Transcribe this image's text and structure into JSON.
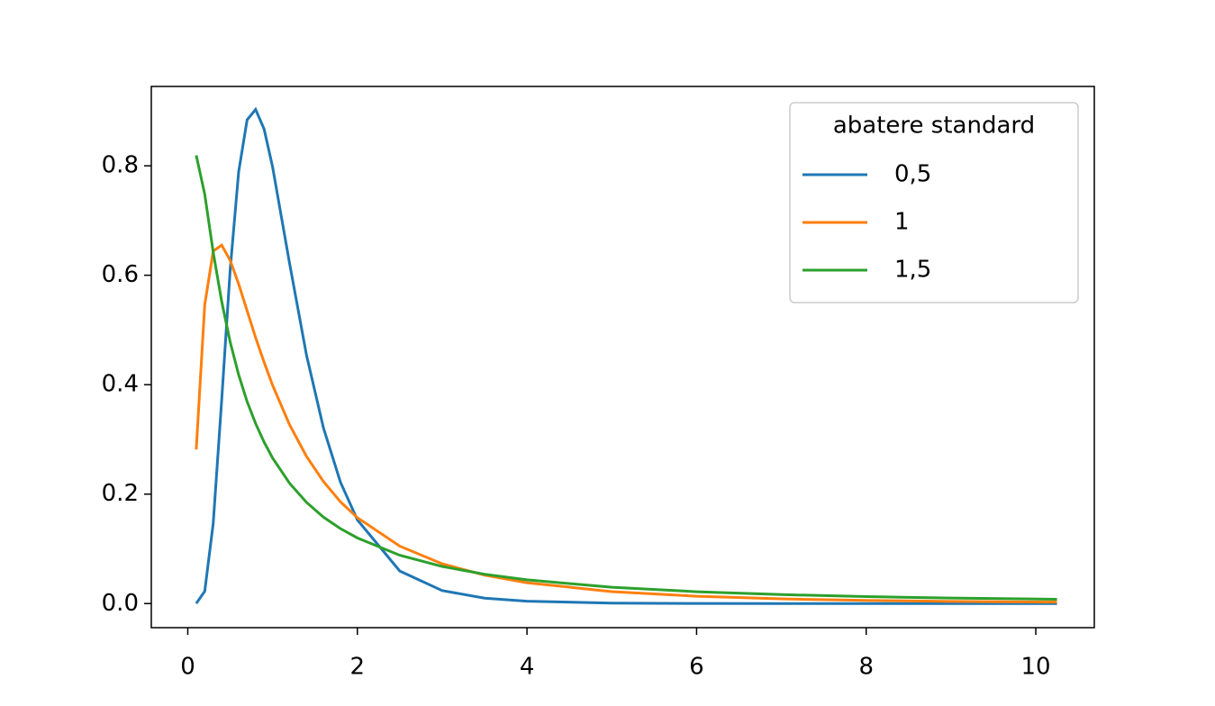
{
  "chart_data": {
    "type": "line",
    "legend_title": "abatere standard",
    "legend_position": "upper right",
    "x": [
      0.1,
      0.2,
      0.3,
      0.4,
      0.5,
      0.6,
      0.7,
      0.8,
      0.9,
      1.0,
      1.2,
      1.4,
      1.6,
      1.8,
      2.0,
      2.5,
      3,
      3.5,
      4,
      5,
      6,
      7,
      8,
      9,
      10.25
    ],
    "series": [
      {
        "name": "0,5",
        "color": "#1f77b4",
        "values": [
          0.0002,
          0.0225,
          0.1465,
          0.372,
          0.61,
          0.789,
          0.884,
          0.903,
          0.867,
          0.798,
          0.622,
          0.454,
          0.321,
          0.222,
          0.153,
          0.0595,
          0.0238,
          0.0099,
          0.0043,
          0.0009,
          0.0002,
          0.0001,
          0.0,
          0.0,
          0.0
        ]
      },
      {
        "name": "1",
        "color": "#ff7f0e",
        "values": [
          0.2816,
          0.546,
          0.644,
          0.655,
          0.627,
          0.584,
          0.535,
          0.486,
          0.441,
          0.399,
          0.327,
          0.269,
          0.223,
          0.186,
          0.157,
          0.105,
          0.0727,
          0.052,
          0.0381,
          0.0219,
          0.0134,
          0.0086,
          0.0057,
          0.004,
          0.0026
        ]
      },
      {
        "name": "1,5",
        "color": "#2ca02c",
        "values": [
          0.819,
          0.748,
          0.642,
          0.552,
          0.478,
          0.418,
          0.369,
          0.329,
          0.295,
          0.266,
          0.22,
          0.185,
          0.158,
          0.137,
          0.12,
          0.0883,
          0.0678,
          0.0536,
          0.0434,
          0.0299,
          0.0217,
          0.0164,
          0.0127,
          0.0101,
          0.0078
        ]
      }
    ],
    "xlim": [
      -0.43,
      10.69
    ],
    "ylim": [
      -0.044,
      0.945
    ],
    "xticks": [
      0,
      2,
      4,
      6,
      8,
      10
    ],
    "yticks": [
      {
        "value": 0,
        "label": "0.0"
      },
      {
        "value": 0.2,
        "label": "0.2"
      },
      {
        "value": 0.4,
        "label": "0.4"
      },
      {
        "value": 0.6,
        "label": "0.6"
      },
      {
        "value": 0.8,
        "label": "0.8"
      }
    ],
    "grid": false
  }
}
